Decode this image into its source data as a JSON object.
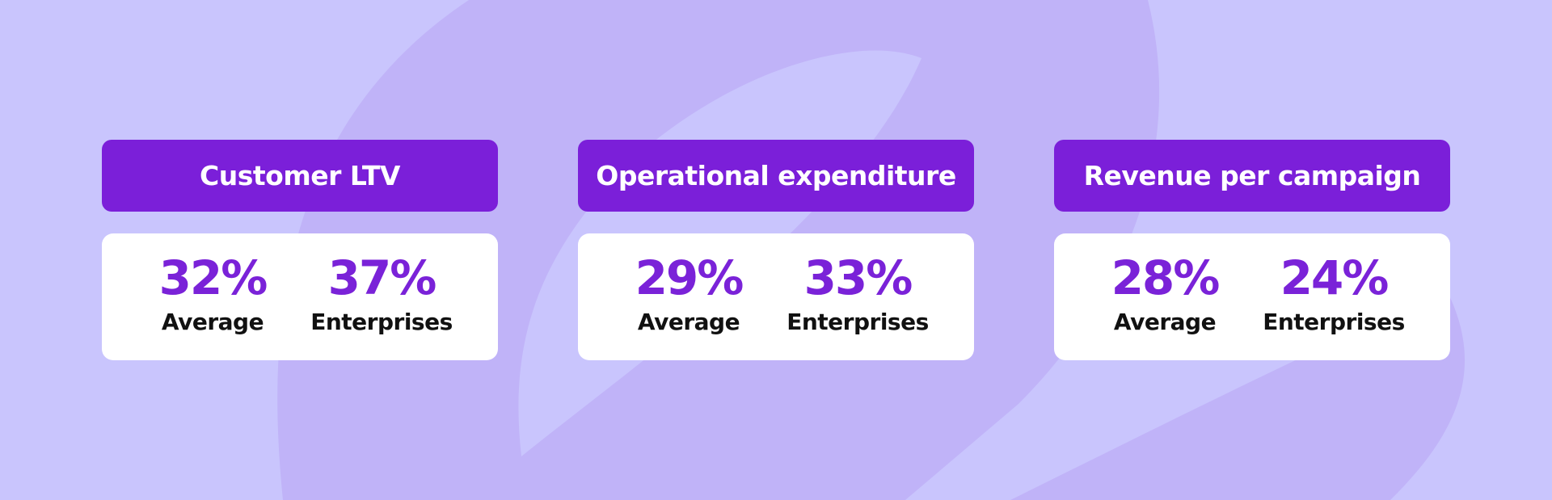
{
  "cards": [
    {
      "title": "Customer LTV",
      "stats": [
        {
          "value": "32%",
          "label": "Average"
        },
        {
          "value": "37%",
          "label": "Enterprises"
        }
      ]
    },
    {
      "title": "Operational expenditure",
      "stats": [
        {
          "value": "29%",
          "label": "Average"
        },
        {
          "value": "33%",
          "label": "Enterprises"
        }
      ]
    },
    {
      "title": "Revenue per campaign",
      "stats": [
        {
          "value": "28%",
          "label": "Average"
        },
        {
          "value": "24%",
          "label": "Enterprises"
        }
      ]
    }
  ]
}
